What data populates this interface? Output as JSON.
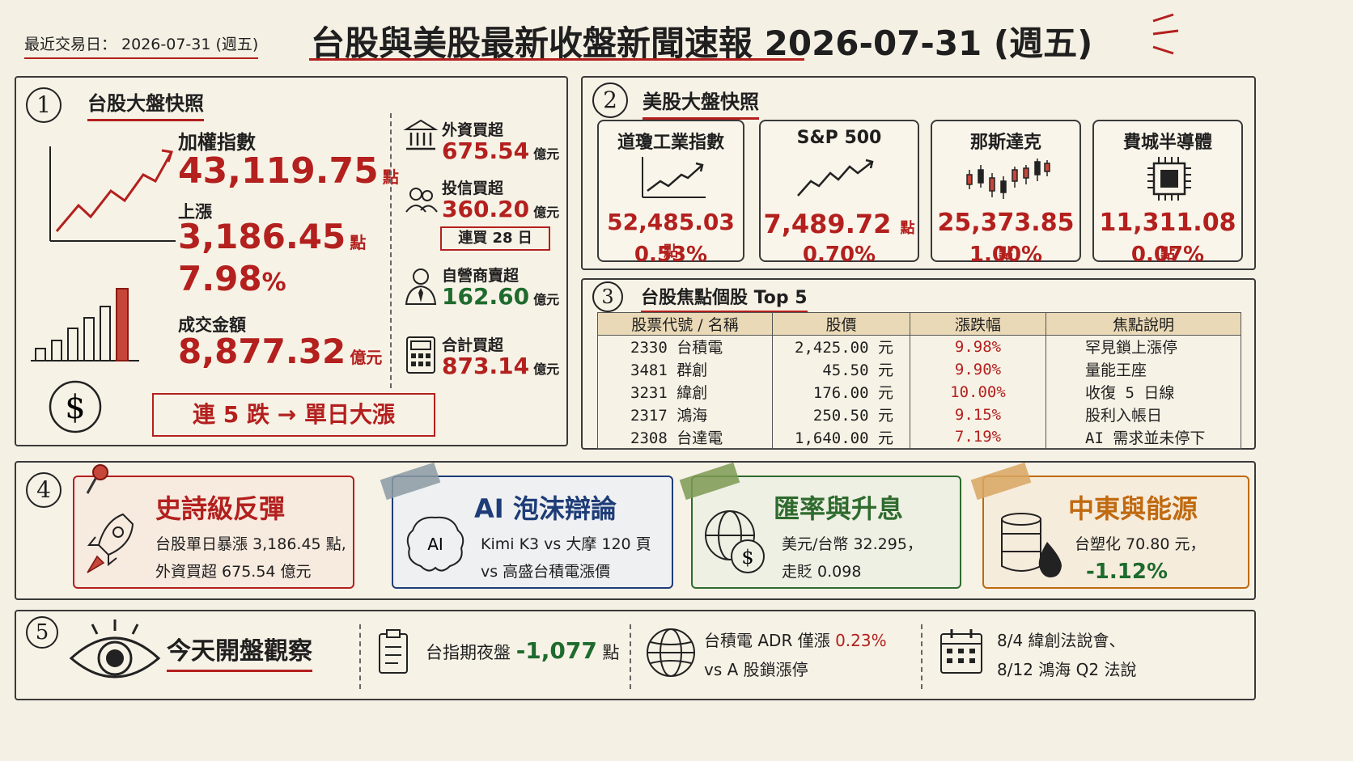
{
  "header": {
    "trade_date_label": "最近交易日： 2026-07-31 (週五)",
    "title": "台股與美股最新收盤新聞速報 2026-07-31 (週五)"
  },
  "colors": {
    "accent_red": "#b3201e",
    "accent_green": "#1f6b2e",
    "paper": "#f5f0e4"
  },
  "tw": {
    "num": "1",
    "title": "台股大盤快照",
    "index_label": "加權指數",
    "index_value": "43,119.75",
    "index_unit": "點",
    "change_label": "上漲",
    "change_value": "3,186.45",
    "change_unit": "點",
    "change_pct": "7.98",
    "pct_sign": "%",
    "turnover_label": "成交金額",
    "turnover_value": "8,877.32",
    "turnover_unit": "億元",
    "streak_box": "連 5 跌 → 單日大漲",
    "flows": [
      {
        "icon": "bank-icon",
        "label": "外資買超",
        "value": "675.54",
        "unit": "億元",
        "color": "red"
      },
      {
        "icon": "people-icon",
        "label": "投信買超",
        "value": "360.20",
        "unit": "億元",
        "color": "red",
        "badge": "連買 28 日"
      },
      {
        "icon": "businessman-icon",
        "label": "自營商賣超",
        "value": "162.60",
        "unit": "億元",
        "color": "green"
      },
      {
        "icon": "calculator-icon",
        "label": "合計買超",
        "value": "873.14",
        "unit": "億元",
        "color": "red"
      }
    ]
  },
  "us": {
    "num": "2",
    "title": "美股大盤快照",
    "cards": [
      {
        "name": "道瓊工業指數",
        "value": "52,485.03",
        "unit": "點",
        "pct": "0.53%",
        "icon": "line-chart-icon"
      },
      {
        "name": "S&P 500",
        "value": "7,489.72",
        "unit": "點",
        "pct": "0.70%",
        "icon": "trend-up-icon"
      },
      {
        "name": "那斯達克",
        "value": "25,373.85",
        "unit": "點",
        "pct": "1.00%",
        "icon": "candlestick-icon"
      },
      {
        "name": "費城半導體",
        "value": "11,311.08",
        "unit": "點",
        "pct": "0.07%",
        "icon": "chip-icon"
      }
    ]
  },
  "focus": {
    "num": "3",
    "title": "台股焦點個股 Top 5",
    "columns": [
      "股票代號 / 名稱",
      "股價",
      "漲跌幅",
      "焦點說明"
    ],
    "rows": [
      {
        "code": "2330 台積電",
        "price": "2,425.00 元",
        "chg": "9.98%",
        "note": "罕見鎖上漲停"
      },
      {
        "code": "3481 群創",
        "price": "45.50 元",
        "chg": "9.90%",
        "note": "量能王座"
      },
      {
        "code": "3231 緯創",
        "price": "176.00 元",
        "chg": "10.00%",
        "note": "收復 5 日線"
      },
      {
        "code": "2317 鴻海",
        "price": "250.50 元",
        "chg": "9.15%",
        "note": "股利入帳日"
      },
      {
        "code": "2308 台達電",
        "price": "1,640.00 元",
        "chg": "7.19%",
        "note": "AI 需求並未停下"
      }
    ]
  },
  "topics": {
    "num": "4",
    "items": [
      {
        "title": "史詩級反彈",
        "line1": "台股單日暴漲 3,186.45 點,",
        "line2": "外資買超 675.54 億元",
        "icon": "rocket-icon",
        "accent": "#b3201e"
      },
      {
        "title": "AI 泡沫辯論",
        "line1": "Kimi K3 vs 大摩 120 頁",
        "line2": "vs 高盛台積電漲價",
        "icon": "ai-brain-icon",
        "accent": "#1e3c78"
      },
      {
        "title": "匯率與升息",
        "line1": "美元/台幣 32.295，",
        "line2": "走貶 0.098",
        "icon": "globe-dollar-icon",
        "accent": "#2f6b2e"
      },
      {
        "title": "中東與能源",
        "line1": "台塑化 70.80 元，",
        "line2": "-1.12%",
        "icon": "oil-barrel-icon",
        "accent": "#c06a10"
      }
    ]
  },
  "watch": {
    "num": "5",
    "title": "今天開盤觀察",
    "items": [
      {
        "icon": "clipboard-icon",
        "text": "台指期夜盤 ",
        "value": "-1,077",
        "unit": " 點"
      },
      {
        "icon": "globe-icon",
        "line1a": "台積電 ADR 僅漲 ",
        "line1b": "0.23%",
        "line2": "vs A 股鎖漲停"
      },
      {
        "icon": "calendar-icon",
        "line1": "8/4 緯創法說會、",
        "line2": "8/12 鴻海 Q2 法說"
      }
    ]
  }
}
